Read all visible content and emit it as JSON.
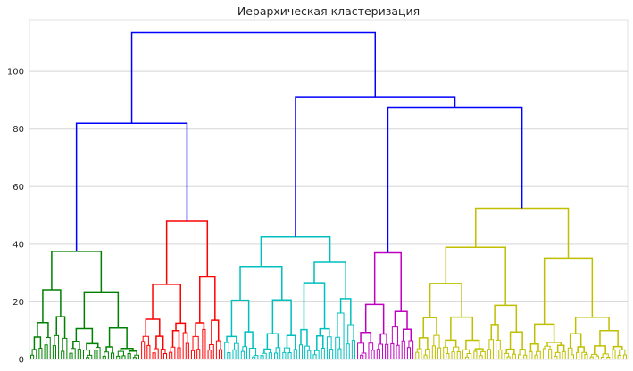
{
  "chart_data": {
    "type": "dendrogram",
    "title": "Иерархическая кластеризация",
    "xlabel": "",
    "ylabel": "",
    "ylim": [
      0,
      118
    ],
    "yticks": [
      0,
      20,
      40,
      60,
      80,
      100
    ],
    "grid": "horizontal",
    "above_threshold_color": "#0000ff",
    "clusters": [
      {
        "color": "#008000",
        "leaf_span": [
          0,
          40
        ],
        "merge_height": 37.5
      },
      {
        "color": "#ff0000",
        "leaf_span": [
          40,
          70
        ],
        "merge_height": 48
      },
      {
        "color": "#00bfbf",
        "leaf_span": [
          70,
          118
        ],
        "merge_height": 42.5
      },
      {
        "color": "#bf00bf",
        "leaf_span": [
          118,
          139
        ],
        "merge_height": 37
      },
      {
        "color": "#bfbf00",
        "leaf_span": [
          139,
          216
        ],
        "merge_height": 52.5
      }
    ],
    "total_leaves": 216,
    "top_merges": [
      {
        "height": 82,
        "children": [
          "green",
          "red"
        ]
      },
      {
        "height": 87.5,
        "children": [
          "magenta",
          "yellow"
        ]
      },
      {
        "height": 91,
        "children": [
          "cyan",
          "magenta+yellow"
        ]
      },
      {
        "height": 113.5,
        "children": [
          "green+red",
          "cyan+magenta+yellow"
        ]
      }
    ]
  }
}
